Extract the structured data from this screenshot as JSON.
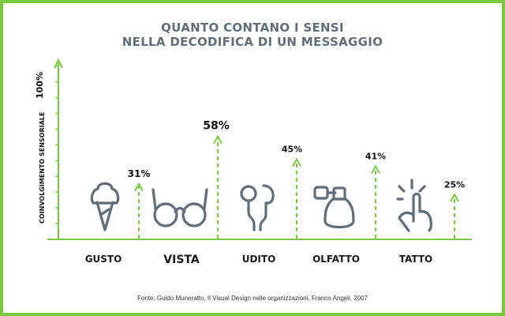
{
  "title_line1": "QUANTO CONTANO I SENSI",
  "title_line2": "NELLA DECODIFICA DI UN MESSAGGIO",
  "source": "Fonte: Guido Muneratto, Il Visual Design nelle organizzazioni, Franco Angeli, 2007",
  "colors": {
    "accent": "#7ac943",
    "icon": "#5f6e78",
    "text": "#111111"
  },
  "chart_data": {
    "type": "bar",
    "title": "QUANTO CONTANO I SENSI NELLA DECODIFICA DI UN MESSAGGIO",
    "ylabel": "COINVOLGIMENTO SENSORIALE",
    "ymax_label": "100%",
    "ylim": [
      0,
      100
    ],
    "categories": [
      "GUSTO",
      "VISTA",
      "UDITO",
      "OLFATTO",
      "TATTO"
    ],
    "values": [
      31,
      58,
      45,
      41,
      25
    ],
    "value_labels": [
      "31%",
      "58%",
      "45%",
      "41%",
      "25%"
    ],
    "icons": [
      "ice-cream-icon",
      "glasses-icon",
      "earphones-icon",
      "perfume-icon",
      "touch-icon"
    ],
    "bar_style": "dashed green arrows"
  }
}
